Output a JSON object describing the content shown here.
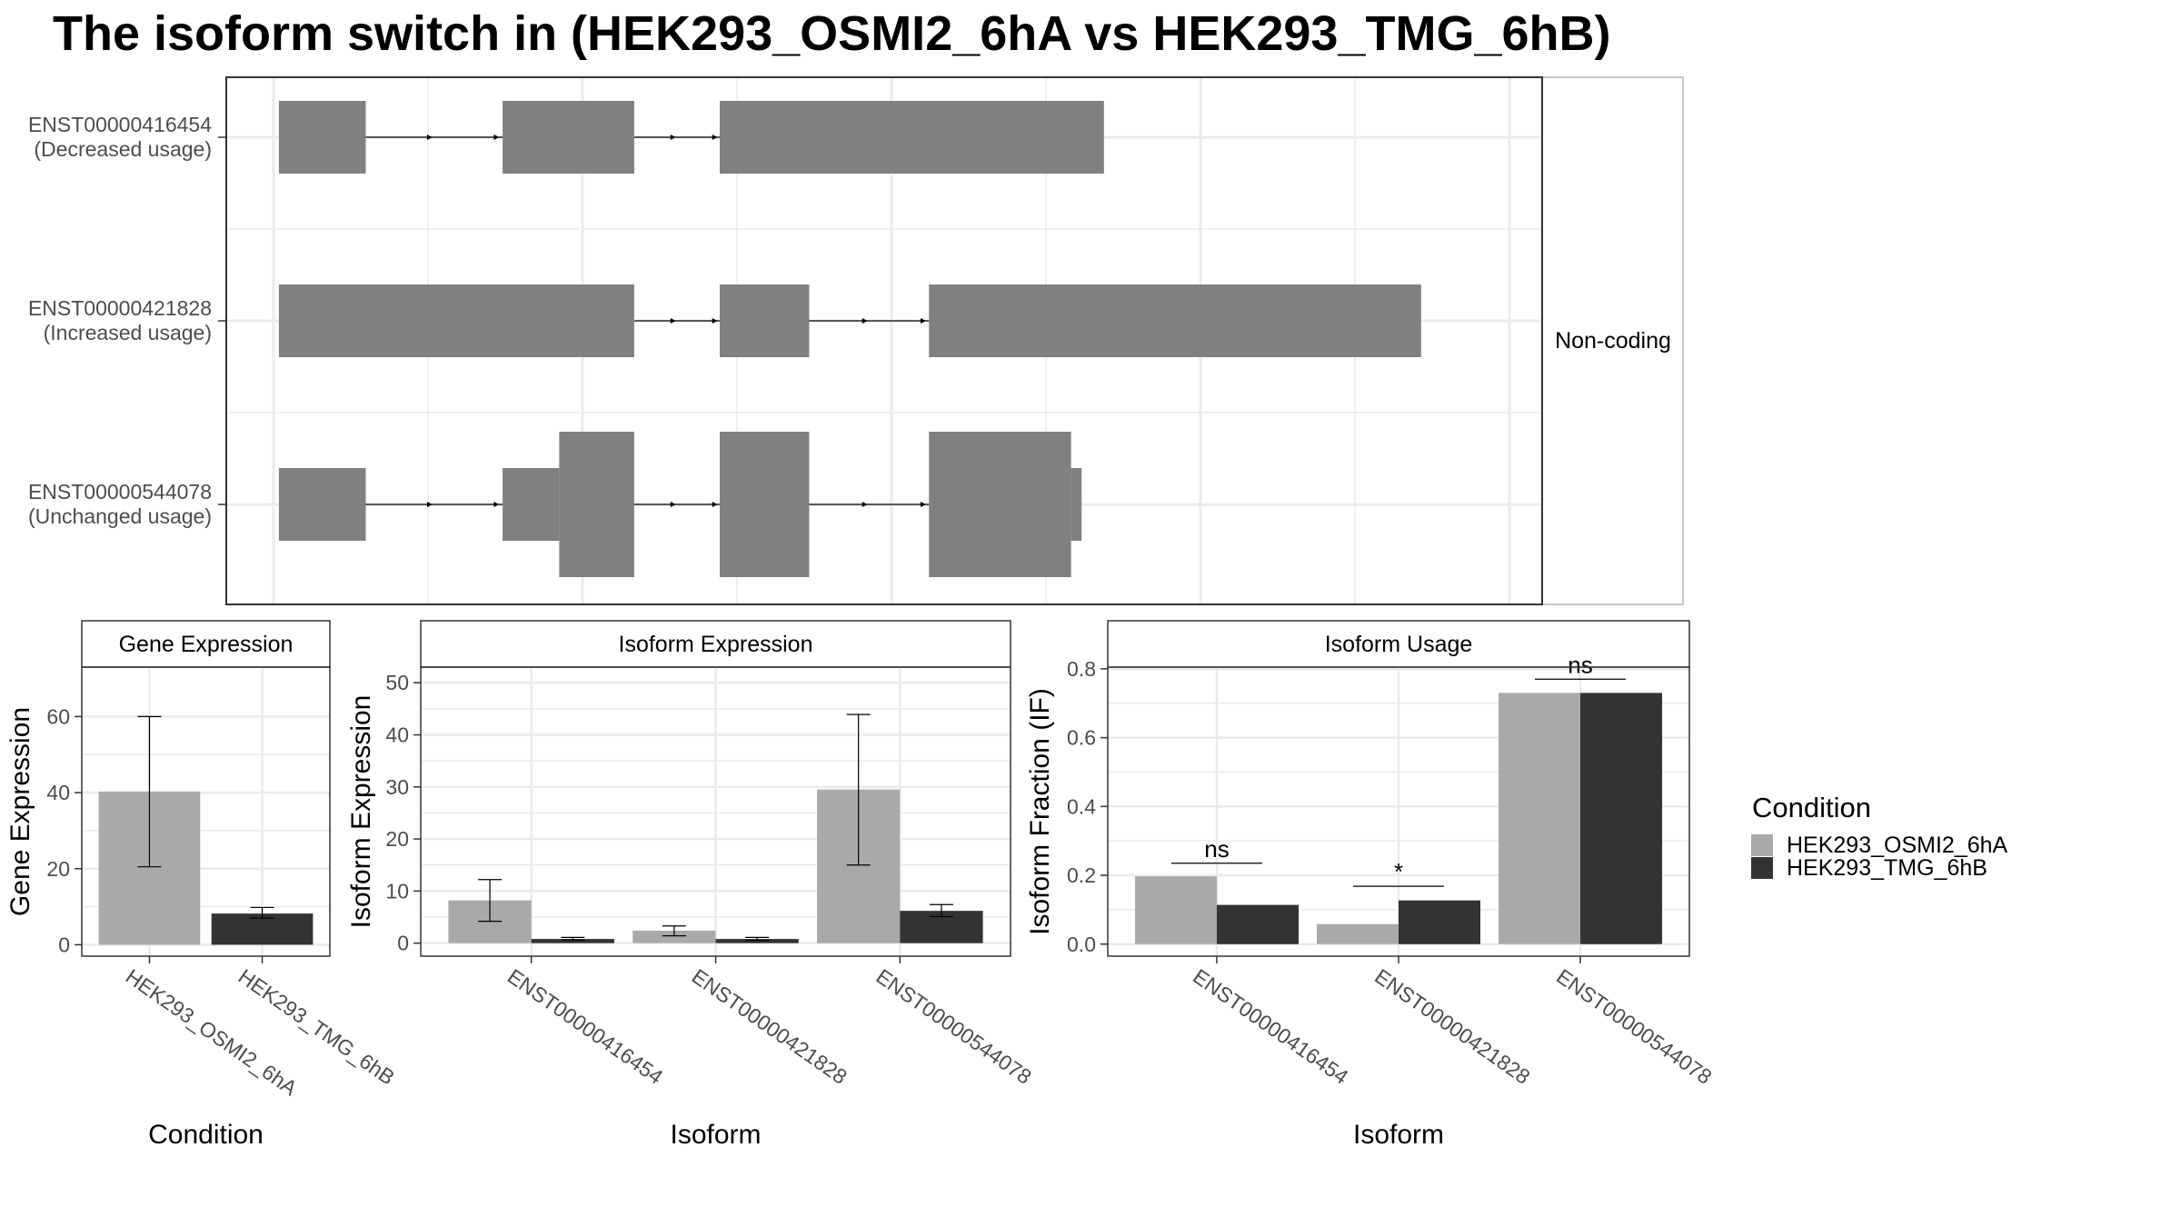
{
  "title": "The isoform switch in  (HEK293_OSMI2_6hA vs HEK293_TMG_6hB)",
  "colors": {
    "condition_a": "#a9a9a9",
    "condition_b": "#333333",
    "exon": "#808080",
    "grid": "#ebebeb",
    "frame": "#333333",
    "strip": "#ffffff"
  },
  "legend": {
    "title": "Condition",
    "entries": [
      {
        "label": "HEK293_OSMI2_6hA",
        "color": "#a9a9a9"
      },
      {
        "label": "HEK293_TMG_6hB",
        "color": "#333333"
      }
    ]
  },
  "chart_data": [
    {
      "type": "gene_structure",
      "facet_label": "Non-coding",
      "transcripts": [
        {
          "id": "ENST00000416454",
          "usage": "(Decreased usage)",
          "exons": [
            {
              "start": 0.04,
              "end": 0.106,
              "h": "narrow"
            },
            {
              "start": 0.21,
              "end": 0.31,
              "h": "narrow"
            },
            {
              "start": 0.375,
              "end": 0.667,
              "h": "narrow"
            }
          ]
        },
        {
          "id": "ENST00000421828",
          "usage": "(Increased usage)",
          "exons": [
            {
              "start": 0.04,
              "end": 0.31,
              "h": "narrow"
            },
            {
              "start": 0.375,
              "end": 0.443,
              "h": "narrow"
            },
            {
              "start": 0.534,
              "end": 0.908,
              "h": "narrow"
            }
          ]
        },
        {
          "id": "ENST00000544078",
          "usage": "(Unchanged usage)",
          "exons": [
            {
              "start": 0.04,
              "end": 0.106,
              "h": "narrow"
            },
            {
              "start": 0.21,
              "end": 0.253,
              "h": "narrow"
            },
            {
              "start": 0.253,
              "end": 0.31,
              "h": "wide"
            },
            {
              "start": 0.375,
              "end": 0.443,
              "h": "wide"
            },
            {
              "start": 0.534,
              "end": 0.642,
              "h": "wide"
            },
            {
              "start": 0.642,
              "end": 0.65,
              "h": "narrow"
            }
          ]
        }
      ]
    },
    {
      "type": "bar",
      "facet_label": "Gene Expression",
      "xlabel": "Condition",
      "ylabel": "Gene Expression",
      "ylim": [
        -3,
        73
      ],
      "yticks": [
        0,
        20,
        40,
        60
      ],
      "categories": [
        "HEK293_OSMI2_6hA",
        "HEK293_TMG_6hB"
      ],
      "values": [
        40.3,
        8.2
      ],
      "errors": [
        [
          20.5,
          60.0
        ],
        [
          7.0,
          9.8
        ]
      ]
    },
    {
      "type": "bar",
      "facet_label": "Isoform Expression",
      "xlabel": "Isoform",
      "ylabel": "Isoform Expression",
      "ylim": [
        -2.5,
        53
      ],
      "yticks": [
        0,
        10,
        20,
        30,
        40,
        50
      ],
      "categories": [
        "ENST00000416454",
        "ENST00000421828",
        "ENST00000544078"
      ],
      "series": [
        {
          "name": "HEK293_OSMI2_6hA",
          "values": [
            8.2,
            2.4,
            29.5
          ],
          "errors": [
            [
              4.2,
              12.2
            ],
            [
              1.4,
              3.3
            ],
            [
              15.0,
              43.9
            ]
          ]
        },
        {
          "name": "HEK293_TMG_6hB",
          "values": [
            0.8,
            0.8,
            6.2
          ],
          "errors": [
            [
              0.6,
              1.1
            ],
            [
              0.5,
              1.1
            ],
            [
              5.1,
              7.4
            ]
          ]
        }
      ]
    },
    {
      "type": "bar",
      "facet_label": "Isoform Usage",
      "xlabel": "Isoform",
      "ylabel": "Isoform Fraction (IF)",
      "ylim": [
        -0.035,
        0.805
      ],
      "yticks": [
        0.0,
        0.2,
        0.4,
        0.6,
        0.8
      ],
      "ytick_labels": [
        "0.0",
        "0.2",
        "0.4",
        "0.6",
        "0.8"
      ],
      "categories": [
        "ENST00000416454",
        "ENST00000421828",
        "ENST00000544078"
      ],
      "series": [
        {
          "name": "HEK293_OSMI2_6hA",
          "values": [
            0.197,
            0.058,
            0.73
          ]
        },
        {
          "name": "HEK293_TMG_6hB",
          "values": [
            0.114,
            0.127,
            0.73
          ]
        }
      ],
      "annotations": [
        {
          "category": "ENST00000416454",
          "label": "ns",
          "y": 0.235
        },
        {
          "category": "ENST00000421828",
          "label": "*",
          "y": 0.168
        },
        {
          "category": "ENST00000544078",
          "label": "ns",
          "y": 0.77
        }
      ]
    }
  ]
}
